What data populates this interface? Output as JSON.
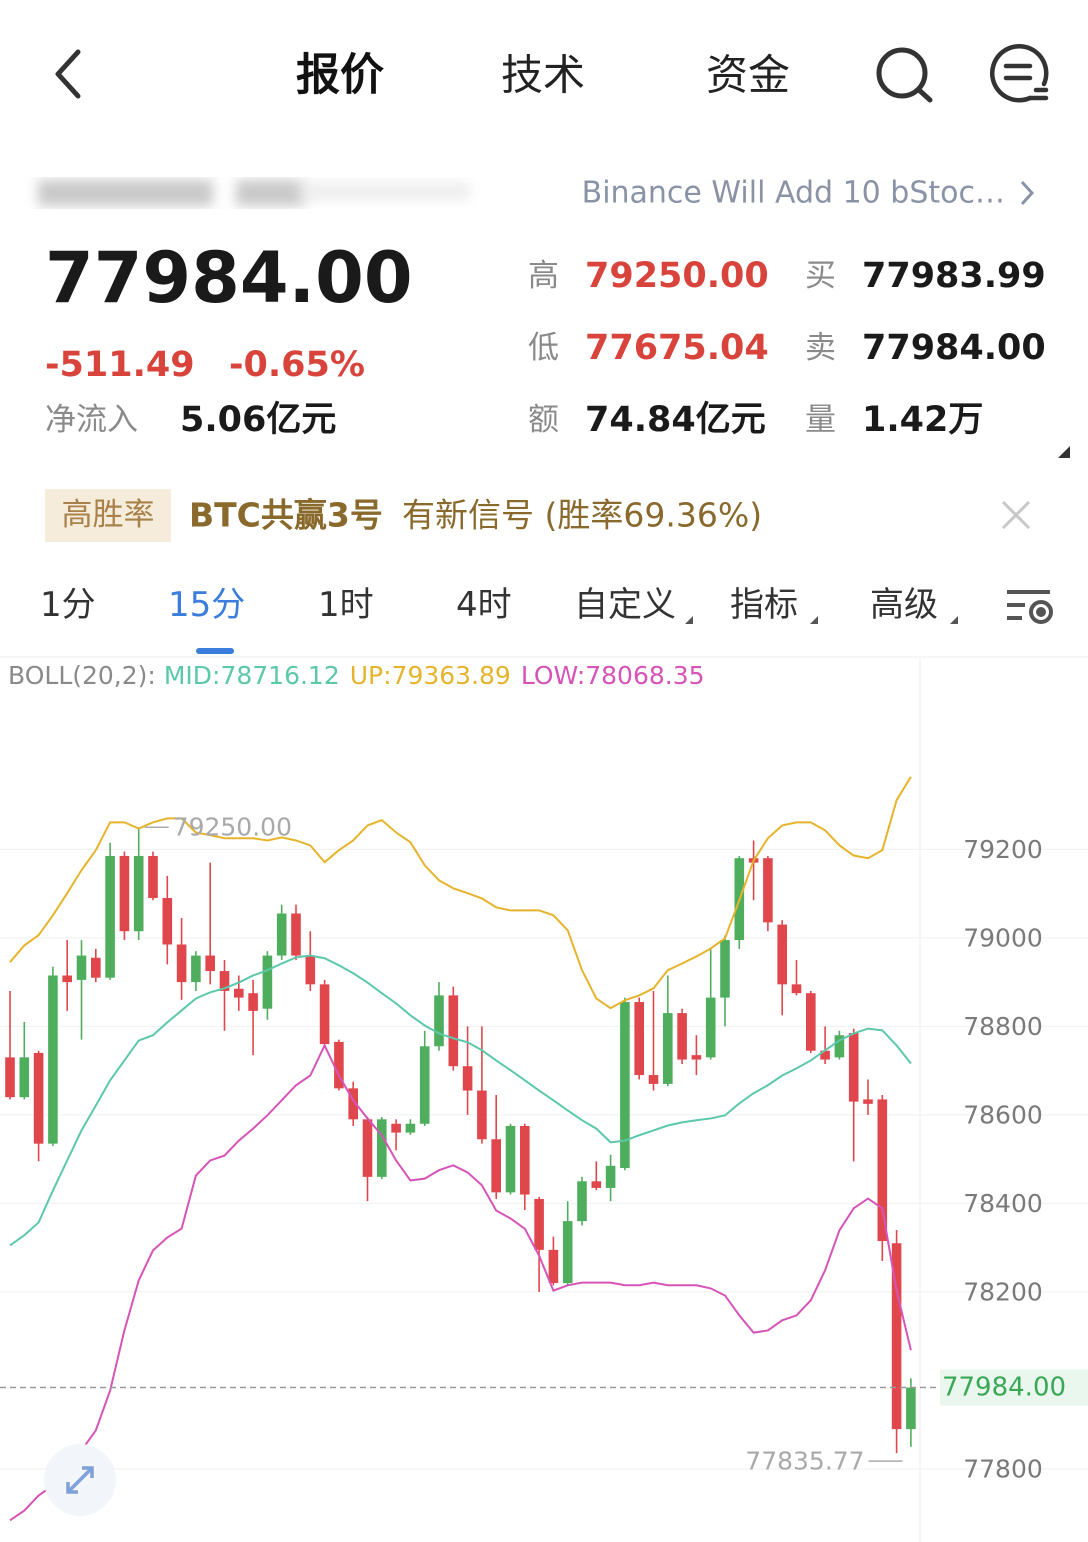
{
  "header": {
    "tabs": [
      "报价",
      "技术",
      "资金"
    ]
  },
  "news": "Binance Will Add 10 bStoc…",
  "quote": {
    "price": "77984.00",
    "change": "-511.49",
    "change_percent": "-0.65%",
    "net_inflow_label": "净流入",
    "net_inflow": "5.06亿元",
    "stats": [
      {
        "label": "高",
        "value": "79250.00"
      },
      {
        "label": "买",
        "value": "77983.99"
      },
      {
        "label": "低",
        "value": "77675.04"
      },
      {
        "label": "卖",
        "value": "77984.00"
      },
      {
        "label": "额",
        "value": "74.84亿元"
      },
      {
        "label": "量",
        "value": "1.42万"
      }
    ]
  },
  "signal": {
    "tag": "高胜率",
    "name": "BTC共赢3号",
    "text": "有新信号 (胜率69.36%)"
  },
  "timeframes": [
    "1分",
    "15分",
    "1时",
    "4时",
    "自定义",
    "指标",
    "高级"
  ],
  "chart_data": {
    "type": "candlestick",
    "indicator": "BOLL(20,2):",
    "open": [
      78730,
      78640,
      78740,
      78535,
      78915,
      78905,
      78955,
      78910,
      79185,
      79015,
      79185,
      79090,
      78985,
      78900,
      78960,
      78925,
      78885,
      78875,
      78840,
      78960,
      79055,
      78960,
      78895,
      78765,
      78660,
      78590,
      78460,
      78580,
      78560,
      78580,
      78755,
      78870,
      78710,
      78655,
      78545,
      78425,
      78575,
      78410,
      78295,
      78220,
      78360,
      78450,
      78435,
      78480,
      78855,
      78690,
      78670,
      78830,
      78735,
      78730,
      78865,
      78995,
      79180,
      79180,
      79030,
      78895,
      78875,
      78745,
      78730,
      78785,
      78635,
      78635,
      78310,
      77890
    ],
    "high": [
      78880,
      78810,
      78745,
      78935,
      78995,
      78995,
      78975,
      79215,
      79195,
      79250,
      79195,
      79140,
      79045,
      78970,
      79170,
      78950,
      78915,
      78905,
      78970,
      79075,
      79075,
      79015,
      78905,
      78770,
      78675,
      78595,
      78595,
      78590,
      78590,
      78790,
      78900,
      78890,
      78800,
      78800,
      78645,
      78580,
      78580,
      78415,
      78325,
      78405,
      78460,
      78495,
      78510,
      78865,
      78865,
      78880,
      78915,
      78840,
      78780,
      78975,
      79005,
      79185,
      79220,
      79185,
      79040,
      78950,
      78880,
      78800,
      78790,
      78795,
      78680,
      78645,
      78340,
      78005
    ],
    "low": [
      78635,
      78635,
      78495,
      78530,
      78835,
      78770,
      78900,
      78905,
      78995,
      78995,
      79085,
      78940,
      78860,
      78880,
      78895,
      78790,
      78835,
      78735,
      78815,
      78950,
      78950,
      78880,
      78755,
      78655,
      78575,
      78405,
      78455,
      78520,
      78555,
      78575,
      78745,
      78700,
      78600,
      78535,
      78410,
      78420,
      78385,
      78200,
      78215,
      78215,
      78350,
      78430,
      78405,
      78475,
      78680,
      78655,
      78665,
      78715,
      78690,
      78725,
      78800,
      78975,
      79085,
      79015,
      78825,
      78870,
      78740,
      78715,
      78725,
      78495,
      78600,
      78270,
      77835.77,
      77850
    ],
    "close": [
      78640,
      78730,
      78535,
      78915,
      78900,
      78960,
      78910,
      79185,
      79015,
      79185,
      79090,
      78985,
      78900,
      78960,
      78925,
      78880,
      78865,
      78835,
      78960,
      79055,
      78960,
      78895,
      78760,
      78660,
      78590,
      78460,
      78590,
      78560,
      78580,
      78755,
      78870,
      78710,
      78655,
      78545,
      78425,
      78575,
      78420,
      78295,
      78220,
      78360,
      78450,
      78435,
      78485,
      78855,
      78690,
      78670,
      78830,
      78725,
      78725,
      78865,
      78995,
      79180,
      79170,
      79035,
      78895,
      78875,
      78745,
      78725,
      78780,
      78630,
      78625,
      78315,
      77890,
      77984
    ],
    "up_color": "#4fae5e",
    "down_color": "#e0474c",
    "series": [
      {
        "name": "MID:78716.12",
        "color": "#5cc8ab",
        "values": [
          78305,
          78328,
          78357,
          78429,
          78497,
          78565,
          78621,
          78678,
          78723,
          78768,
          78780,
          78809,
          78836,
          78863,
          78877,
          78886,
          78899,
          78915,
          78927,
          78942,
          78956,
          78960,
          78954,
          78938,
          78920,
          78899,
          78875,
          78852,
          78825,
          78802,
          78784,
          78773,
          78764,
          78746,
          78723,
          78701,
          78678,
          78655,
          78633,
          78610,
          78588,
          78569,
          78538,
          78542,
          78554,
          78565,
          78576,
          78583,
          78588,
          78592,
          78599,
          78626,
          78649,
          78667,
          78689,
          78705,
          78723,
          78746,
          78768,
          78784,
          78795,
          78791,
          78757,
          78716.12
        ]
      },
      {
        "name": "UP:79363.89",
        "color": "#e6b42c",
        "values": [
          78945,
          78983,
          79006,
          79051,
          79101,
          79153,
          79198,
          79261,
          79261,
          79247,
          79261,
          79270,
          79270,
          79238,
          79232,
          79225,
          79225,
          79225,
          79220,
          79227,
          79220,
          79209,
          79171,
          79198,
          79220,
          79254,
          79266,
          79238,
          79216,
          79164,
          79130,
          79112,
          79101,
          79089,
          79069,
          79062,
          79062,
          79062,
          79051,
          79017,
          78927,
          78863,
          78841,
          78859,
          78870,
          78886,
          78927,
          78942,
          78958,
          78976,
          78999,
          79085,
          79175,
          79225,
          79254,
          79261,
          79261,
          79243,
          79209,
          79186,
          79180,
          79198,
          79311,
          79363.89
        ]
      },
      {
        "name": "LOW:78068.35",
        "color": "#d654b8",
        "values": [
          77684,
          77706,
          77740,
          77763,
          77808,
          77842,
          77887,
          77977,
          78113,
          78226,
          78294,
          78323,
          78343,
          78463,
          78497,
          78508,
          78542,
          78569,
          78599,
          78633,
          78667,
          78689,
          78757,
          78689,
          78633,
          78592,
          78554,
          78497,
          78452,
          78456,
          78475,
          78486,
          78470,
          78441,
          78384,
          78366,
          78343,
          78282,
          78203,
          78215,
          78221,
          78221,
          78221,
          78215,
          78215,
          78221,
          78215,
          78215,
          78215,
          78208,
          78192,
          78147,
          78108,
          78113,
          78136,
          78147,
          78181,
          78249,
          78339,
          78389,
          78411,
          78389,
          78203,
          78068.35
        ]
      }
    ],
    "ylim": [
      77635,
      79560
    ],
    "yticks": [
      77800,
      78200,
      78400,
      78600,
      78800,
      79000,
      79200
    ],
    "grid": true,
    "last_price": {
      "value": 77984,
      "label": "77984.00"
    },
    "max_marker": {
      "value": 79250,
      "label": "79250.00"
    },
    "min_marker": {
      "value": 77835.77,
      "label": "77835.77"
    }
  }
}
